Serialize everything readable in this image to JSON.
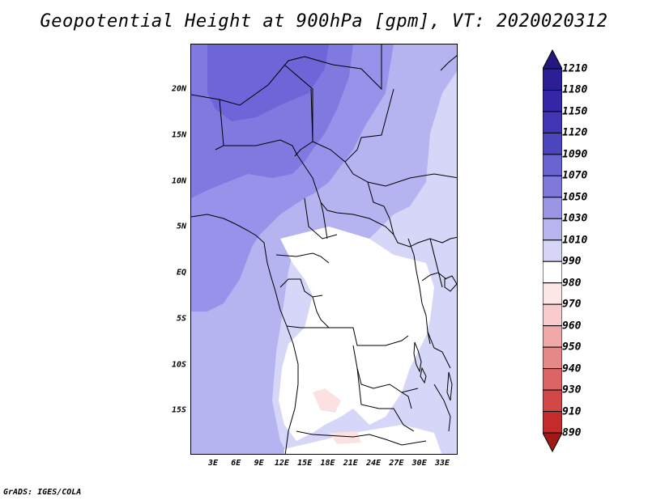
{
  "title": "Geopotential Height at 900hPa [gpm], VT: 2020020312",
  "credit": "GrADS: IGES/COLA",
  "map": {
    "lat_labels": [
      {
        "text": "20N",
        "lat": 20
      },
      {
        "text": "15N",
        "lat": 15
      },
      {
        "text": "10N",
        "lat": 10
      },
      {
        "text": "5N",
        "lat": 5
      },
      {
        "text": "EQ",
        "lat": 0
      },
      {
        "text": "5S",
        "lat": -5
      },
      {
        "text": "10S",
        "lat": -10
      },
      {
        "text": "15S",
        "lat": -15
      }
    ],
    "lon_labels": [
      {
        "text": "3E",
        "lon": 3
      },
      {
        "text": "6E",
        "lon": 6
      },
      {
        "text": "9E",
        "lon": 9
      },
      {
        "text": "12E",
        "lon": 12
      },
      {
        "text": "15E",
        "lon": 15
      },
      {
        "text": "18E",
        "lon": 18
      },
      {
        "text": "21E",
        "lon": 21
      },
      {
        "text": "24E",
        "lon": 24
      },
      {
        "text": "27E",
        "lon": 27
      },
      {
        "text": "30E",
        "lon": 30
      },
      {
        "text": "33E",
        "lon": 33
      }
    ],
    "lon_range": [
      0,
      35
    ],
    "lat_range": [
      -20,
      25
    ]
  },
  "colorbar": {
    "levels": [
      {
        "label": "1210",
        "color": "#2c1f96"
      },
      {
        "label": "1180",
        "color": "#3526a8"
      },
      {
        "label": "1150",
        "color": "#4035b4"
      },
      {
        "label": "1120",
        "color": "#4c46bf"
      },
      {
        "label": "1090",
        "color": "#6a63d2"
      },
      {
        "label": "1070",
        "color": "#8079dc"
      },
      {
        "label": "1050",
        "color": "#9b95e6"
      },
      {
        "label": "1030",
        "color": "#b8b4ee"
      },
      {
        "label": "1010",
        "color": "#d6d5f6"
      },
      {
        "label": "990",
        "color": "#ffffff"
      },
      {
        "label": "980",
        "color": "#fce6e6"
      },
      {
        "label": "970",
        "color": "#f8cccc"
      },
      {
        "label": "960",
        "color": "#f0a8a8"
      },
      {
        "label": "950",
        "color": "#e48888"
      },
      {
        "label": "940",
        "color": "#dc6464"
      },
      {
        "label": "930",
        "color": "#d24848"
      },
      {
        "label": "910",
        "color": "#c42c2c"
      },
      {
        "label": "890",
        "color": "#b01c1c"
      }
    ],
    "top_color": "#241880",
    "bottom_color": "#a01818"
  },
  "field_colors": {
    "c1090": "#6e66d8",
    "c1070": "#807ae0",
    "c1050": "#9893ea",
    "c1030": "#b6b3f1",
    "c1010": "#d6d6f8",
    "c990": "#ffffff",
    "c980": "#fbe1e1"
  }
}
